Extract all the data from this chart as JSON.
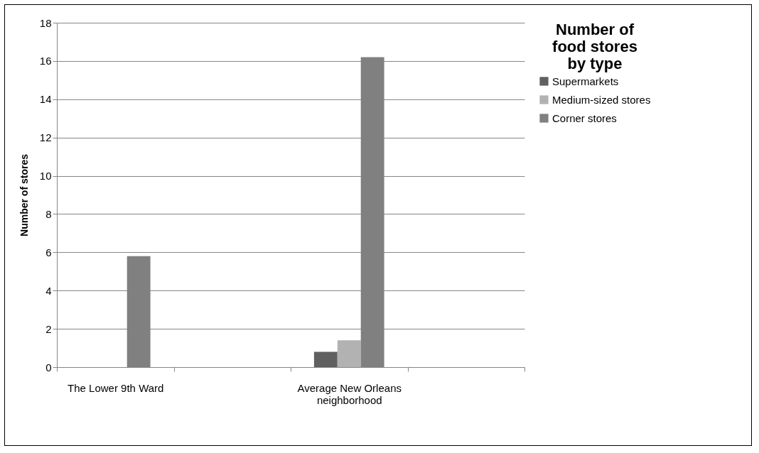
{
  "chart_data": {
    "type": "bar",
    "ylabel": "Number of stores",
    "legend_title": "Number of food stores by type",
    "categories": [
      "The Lower 9th Ward",
      null,
      "Average New Orleans neighborhood",
      null
    ],
    "series": [
      {
        "name": "Supermarkets",
        "color": "#606060",
        "values": [
          0,
          null,
          0.8,
          null
        ]
      },
      {
        "name": "Medium-sized stores",
        "color": "#b2b2b2",
        "values": [
          0,
          null,
          1.4,
          null
        ]
      },
      {
        "name": "Corner stores",
        "color": "#808080",
        "values": [
          5.8,
          null,
          16.2,
          null
        ]
      }
    ],
    "ylim": [
      0,
      18
    ],
    "yticks": [
      0,
      2,
      4,
      6,
      8,
      10,
      12,
      14,
      16,
      18
    ],
    "grid": "y",
    "legend": "right"
  }
}
